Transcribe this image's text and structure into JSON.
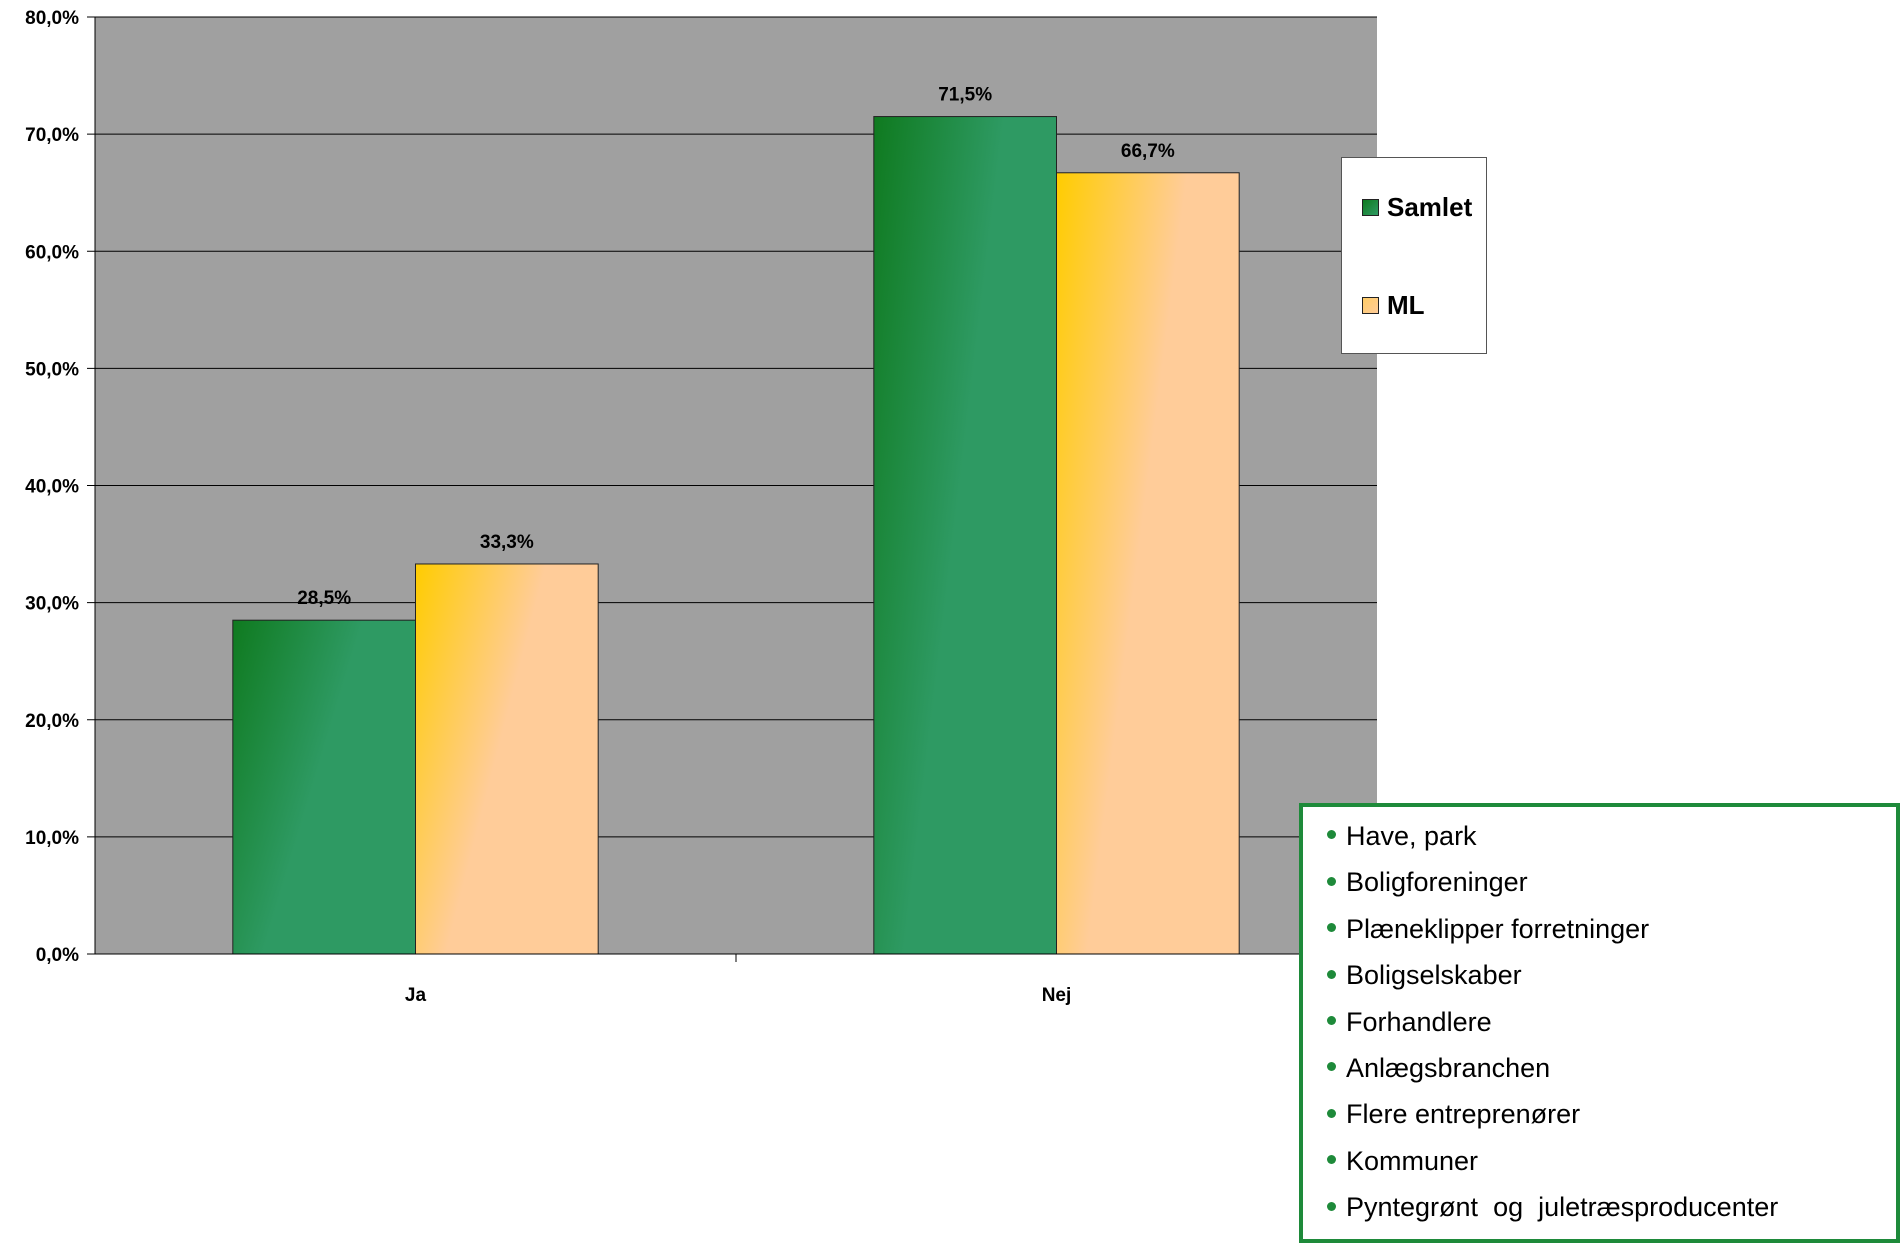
{
  "chart_data": {
    "type": "bar",
    "categories": [
      "Ja",
      "Nej"
    ],
    "series": [
      {
        "name": "Samlet",
        "values": [
          28.5,
          71.5
        ],
        "labels": [
          "28,5%",
          "71,5%"
        ]
      },
      {
        "name": "ML",
        "values": [
          33.3,
          66.7
        ],
        "labels": [
          "33,3%",
          "66,7%"
        ]
      }
    ],
    "ylim": [
      0,
      80
    ],
    "y_ticks": [
      "0,0%",
      "10,0%",
      "20,0%",
      "30,0%",
      "40,0%",
      "50,0%",
      "60,0%",
      "70,0%",
      "80,0%"
    ],
    "y_tick_values": [
      0,
      10,
      20,
      30,
      40,
      50,
      60,
      70,
      80
    ],
    "grid": true,
    "legend_position": "right",
    "plot_background": "#a0a0a0",
    "series_colors": {
      "Samlet": {
        "dark": "#0f7a1f",
        "main": "#2e9a63"
      },
      "ML": {
        "bright": "#ffcc00",
        "main": "#ffcc99"
      }
    }
  },
  "legend": {
    "entries": [
      "Samlet",
      "ML"
    ]
  },
  "note_box": {
    "items": [
      "Have, park",
      "Boligforeninger",
      "Plæneklipper forretninger",
      "Boligselskaber",
      "Forhandlere",
      "Anlægsbranchen",
      "Flere entreprenører",
      "Kommuner",
      "Pyntegrønt  og  juletræsproducenter"
    ],
    "accent_color": "#1e8a3a"
  }
}
